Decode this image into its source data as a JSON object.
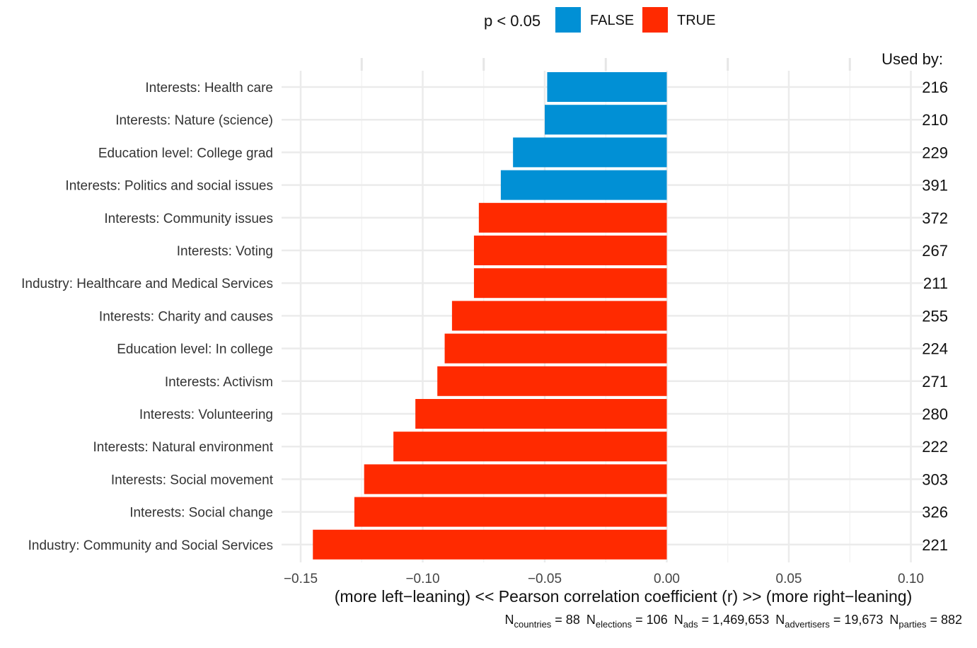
{
  "legend": {
    "title": "p < 0.05",
    "items": [
      {
        "label": "FALSE",
        "color": "#0190D5"
      },
      {
        "label": "TRUE",
        "color": "#FF2A00"
      }
    ]
  },
  "used_by_header": "Used by:",
  "chart_data": {
    "type": "bar",
    "orientation": "horizontal",
    "xlabel": "(more left−leaning) << Pearson correlation coefficient (r) >> (more right−leaning)",
    "xlim": [
      -0.15,
      0.1
    ],
    "xticks": [
      -0.15,
      -0.1,
      -0.05,
      0.0,
      0.05,
      0.1
    ],
    "xtick_labels": [
      "−0.15",
      "−0.10",
      "−0.05",
      "0.00",
      "0.05",
      "0.10"
    ],
    "grid": true,
    "legend_position": "top",
    "categories": [
      "Interests: Health care",
      "Interests: Nature (science)",
      "Education level: College grad",
      "Interests: Politics and social issues",
      "Interests: Community issues",
      "Interests: Voting",
      "Industry: Healthcare and Medical Services",
      "Interests: Charity and causes",
      "Education level: In college",
      "Interests: Activism",
      "Interests: Volunteering",
      "Interests: Natural environment",
      "Interests: Social movement",
      "Interests: Social change",
      "Industry: Community and Social Services"
    ],
    "values": [
      -0.049,
      -0.05,
      -0.063,
      -0.068,
      -0.077,
      -0.079,
      -0.079,
      -0.088,
      -0.091,
      -0.094,
      -0.103,
      -0.112,
      -0.124,
      -0.128,
      -0.145
    ],
    "significant": [
      false,
      false,
      false,
      false,
      true,
      true,
      true,
      true,
      true,
      true,
      true,
      true,
      true,
      true,
      true
    ],
    "used_by": [
      "216",
      "210",
      "229",
      "391",
      "372",
      "267",
      "211",
      "255",
      "224",
      "271",
      "280",
      "222",
      "303",
      "326",
      "221"
    ]
  },
  "footnote": [
    {
      "base": "N",
      "sub": "countries",
      "value": " = 88"
    },
    {
      "base": "N",
      "sub": "elections",
      "value": " = 106"
    },
    {
      "base": "N",
      "sub": "ads",
      "value": " = 1,469,653"
    },
    {
      "base": "N",
      "sub": "advertisers",
      "value": " = 19,673"
    },
    {
      "base": "N",
      "sub": "parties",
      "value": " = 882"
    }
  ]
}
